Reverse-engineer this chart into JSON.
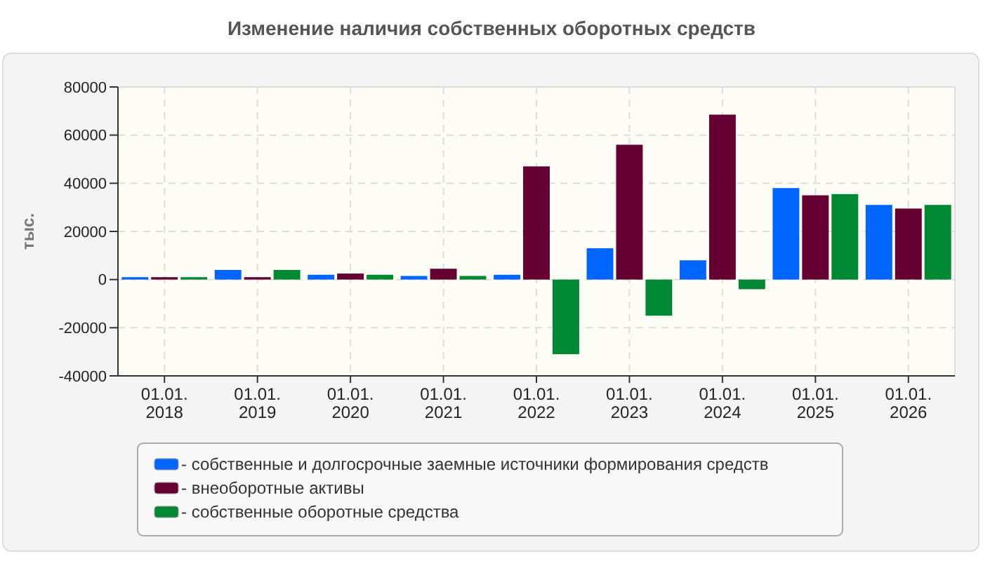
{
  "chart_data": {
    "type": "bar",
    "title": "Изменение наличия собственных оборотных средств",
    "ylabel": "тыс.",
    "categories": [
      "01.01. 2018",
      "01.01. 2019",
      "01.01. 2020",
      "01.01. 2021",
      "01.01. 2022",
      "01.01. 2023",
      "01.01. 2024",
      "01.01. 2025",
      "01.01. 2026"
    ],
    "series": [
      {
        "name": "- собственные и долгосрочные заемные источники формирования средств",
        "color": "#0066ff",
        "values": [
          1000,
          4000,
          2000,
          1500,
          2000,
          13000,
          8000,
          38000,
          31000
        ]
      },
      {
        "name": "- внеоборотные активы",
        "color": "#660033",
        "values": [
          1000,
          1000,
          2500,
          4500,
          47000,
          56000,
          68500,
          35000,
          29500
        ]
      },
      {
        "name": "- собственные оборотные средства",
        "color": "#008833",
        "values": [
          1000,
          4000,
          2000,
          1500,
          -31000,
          -15000,
          -4000,
          35500,
          31000
        ]
      }
    ],
    "ylim": [
      -40000,
      80000
    ],
    "yticks": [
      -40000,
      -20000,
      0,
      20000,
      40000,
      60000,
      80000
    ],
    "grid": true,
    "legend": "bottom"
  }
}
